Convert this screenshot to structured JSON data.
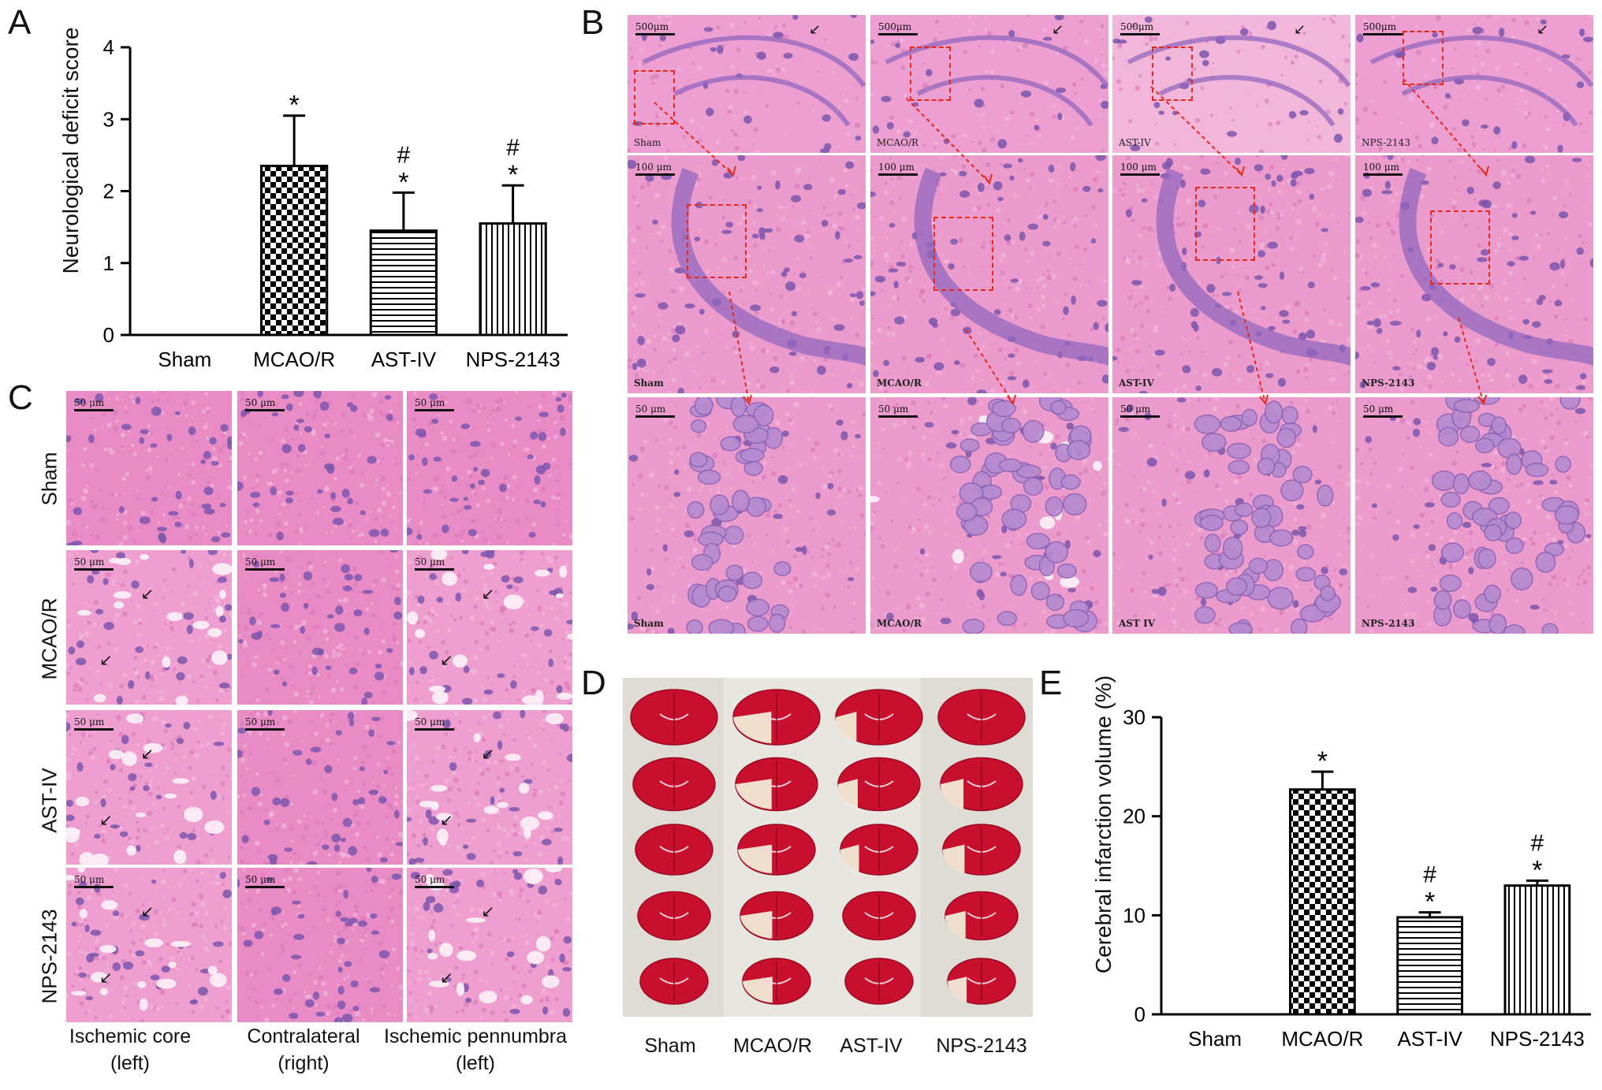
{
  "figure": {
    "panel_letters": [
      "A",
      "B",
      "C",
      "D",
      "E"
    ]
  },
  "chart_data": [
    {
      "panel": "A",
      "type": "bar",
      "categories": [
        "Sham",
        "MCAO/R",
        "AST-IV",
        "NPS-2143"
      ],
      "values": [
        0,
        2.35,
        1.45,
        1.55
      ],
      "errors": [
        0,
        0.7,
        0.53,
        0.53
      ],
      "significance": [
        "",
        "*",
        "#\n*",
        "#\n*"
      ],
      "patterns": [
        "none",
        "checker",
        "horizontal",
        "vertical"
      ],
      "xlabel": "",
      "ylabel": "Neurological deficit score",
      "ylim": [
        0,
        4
      ],
      "yticks": [
        0,
        1,
        2,
        3,
        4
      ],
      "grid": false
    },
    {
      "panel": "E",
      "type": "bar",
      "categories": [
        "Sham",
        "MCAO/R",
        "AST-IV",
        "NPS-2143"
      ],
      "values": [
        0,
        22.7,
        9.8,
        13.0
      ],
      "errors": [
        0,
        1.8,
        0.5,
        0.5
      ],
      "significance": [
        "",
        "*",
        "#\n*",
        "#\n*"
      ],
      "patterns": [
        "none",
        "checker",
        "horizontal",
        "vertical"
      ],
      "xlabel": "",
      "ylabel": "Cerebral infarction volume (%)",
      "ylim": [
        0,
        30
      ],
      "yticks": [
        0,
        10,
        20,
        30
      ],
      "grid": false
    }
  ],
  "panelB": {
    "rows": [
      {
        "scale": "500μm",
        "labels": [
          "Sham",
          "MCAO/R",
          "AST-IV",
          "NPS-2143"
        ]
      },
      {
        "scale": "100 μm",
        "labels": [
          "Sham",
          "MCAO/R",
          "AST-IV",
          "NPS-2143"
        ]
      },
      {
        "scale": "50 μm",
        "labels": [
          "Sham",
          "MCAO/R",
          "AST IV",
          "NPS-2143"
        ]
      }
    ]
  },
  "panelC": {
    "scale": "50 μm",
    "row_labels": [
      "Sham",
      "MCAO/R",
      "AST-IV",
      "NPS-2143"
    ],
    "col_labels": [
      "Ischemic core\n(left)",
      "Contralateral\n(right)",
      "Ischemic pennumbra\n(left)"
    ]
  },
  "panelD": {
    "col_labels": [
      "Sham",
      "MCAO/R",
      "AST-IV",
      "NPS-2143"
    ]
  },
  "colors": {
    "he_pink": "#e889c3",
    "he_purple": "#8a5fb8",
    "ttc_red": "#c8102e",
    "infarct_white": "#f2ead8",
    "arrow_red": "#e8281a"
  }
}
